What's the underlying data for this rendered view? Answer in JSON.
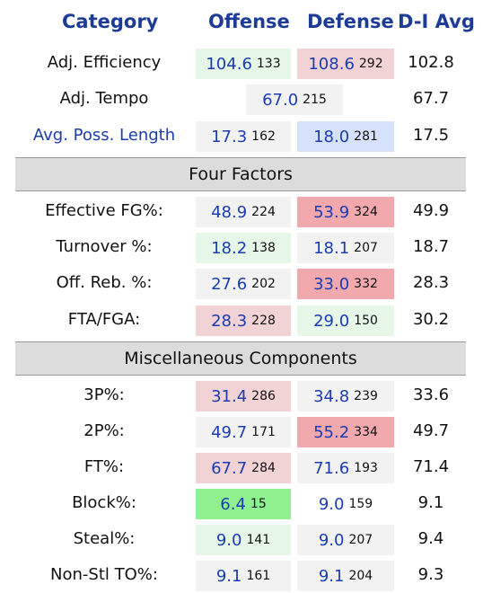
{
  "header": {
    "category": "Category",
    "offense": "Offense",
    "defense": "Defense",
    "avg": "D-I Avg"
  },
  "colors": {
    "header": "#1c3c96",
    "value": "#1a3cb4",
    "best": "#8ef08e",
    "good": "#e6f7e8",
    "neutral": "#f2f2f2",
    "bad": "#f1d2d5",
    "worst": "#f1a9ae",
    "light_blue": "#d6e2fb"
  },
  "top_rows": [
    {
      "label": "Adj. Efficiency",
      "off_value": "104.6",
      "off_rank": "133",
      "def_value": "108.6",
      "def_rank": "292",
      "avg": "102.8"
    },
    {
      "label": "Adj. Tempo",
      "value": "67.0",
      "rank": "215",
      "avg": "67.7"
    },
    {
      "label": "Avg. Poss. Length",
      "off_value": "17.3",
      "off_rank": "162",
      "def_value": "18.0",
      "def_rank": "281",
      "avg": "17.5"
    }
  ],
  "sections": [
    {
      "title": "Four Factors",
      "rows": [
        {
          "label": "Effective FG%:",
          "off_value": "48.9",
          "off_rank": "224",
          "def_value": "53.9",
          "def_rank": "324",
          "avg": "49.9"
        },
        {
          "label": "Turnover %:",
          "off_value": "18.2",
          "off_rank": "138",
          "def_value": "18.1",
          "def_rank": "207",
          "avg": "18.7"
        },
        {
          "label": "Off. Reb. %:",
          "off_value": "27.6",
          "off_rank": "202",
          "def_value": "33.0",
          "def_rank": "332",
          "avg": "28.3"
        },
        {
          "label": "FTA/FGA:",
          "off_value": "28.3",
          "off_rank": "228",
          "def_value": "29.0",
          "def_rank": "150",
          "avg": "30.2"
        }
      ]
    },
    {
      "title": "Miscellaneous Components",
      "rows": [
        {
          "label": "3P%:",
          "off_value": "31.4",
          "off_rank": "286",
          "def_value": "34.8",
          "def_rank": "239",
          "avg": "33.6"
        },
        {
          "label": "2P%:",
          "off_value": "49.7",
          "off_rank": "171",
          "def_value": "55.2",
          "def_rank": "334",
          "avg": "49.7"
        },
        {
          "label": "FT%:",
          "off_value": "67.7",
          "off_rank": "284",
          "def_value": "71.6",
          "def_rank": "193",
          "avg": "71.4"
        },
        {
          "label": "Block%:",
          "off_value": "6.4",
          "off_rank": "15",
          "def_value": "9.0",
          "def_rank": "159",
          "avg": "9.1"
        },
        {
          "label": "Steal%:",
          "off_value": "9.0",
          "off_rank": "141",
          "def_value": "9.0",
          "def_rank": "207",
          "avg": "9.4"
        },
        {
          "label": "Non-Stl TO%:",
          "off_value": "9.1",
          "off_rank": "161",
          "def_value": "9.1",
          "def_rank": "204",
          "avg": "9.3"
        }
      ]
    }
  ]
}
